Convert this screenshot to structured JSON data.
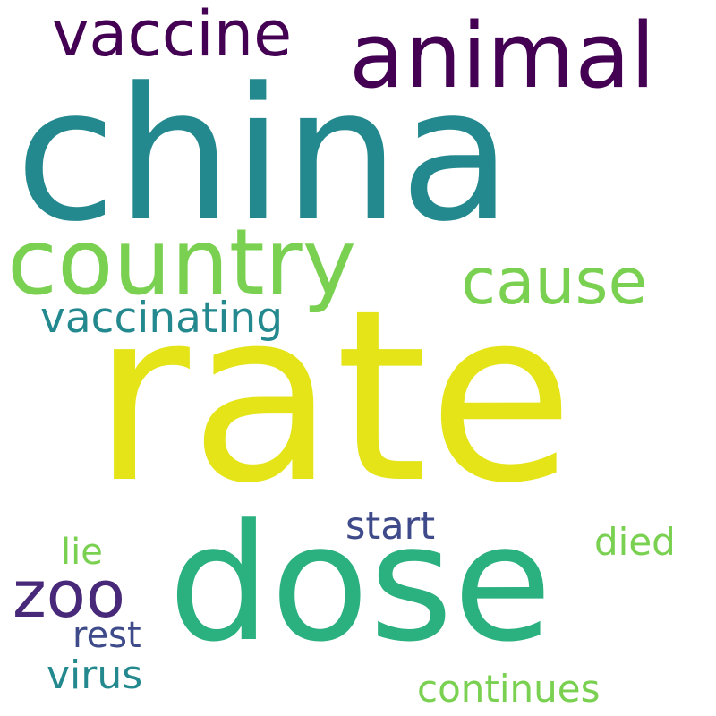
{
  "words": [
    {
      "text": "rate",
      "color": "#e4e419"
    },
    {
      "text": "china",
      "color": "#23898e"
    },
    {
      "text": "dose",
      "color": "#2bb07f"
    },
    {
      "text": "animal",
      "color": "#440154"
    },
    {
      "text": "country",
      "color": "#7ad151"
    },
    {
      "text": "vaccine",
      "color": "#440154"
    },
    {
      "text": "cause",
      "color": "#7ad151"
    },
    {
      "text": "vaccinating",
      "color": "#23898e"
    },
    {
      "text": "zoo",
      "color": "#482878"
    },
    {
      "text": "start",
      "color": "#3e4a89"
    },
    {
      "text": "died",
      "color": "#7ad151"
    },
    {
      "text": "lie",
      "color": "#7ad151"
    },
    {
      "text": "rest",
      "color": "#3e4a89"
    },
    {
      "text": "virus",
      "color": "#23898e"
    },
    {
      "text": "continues",
      "color": "#7ad151"
    }
  ]
}
